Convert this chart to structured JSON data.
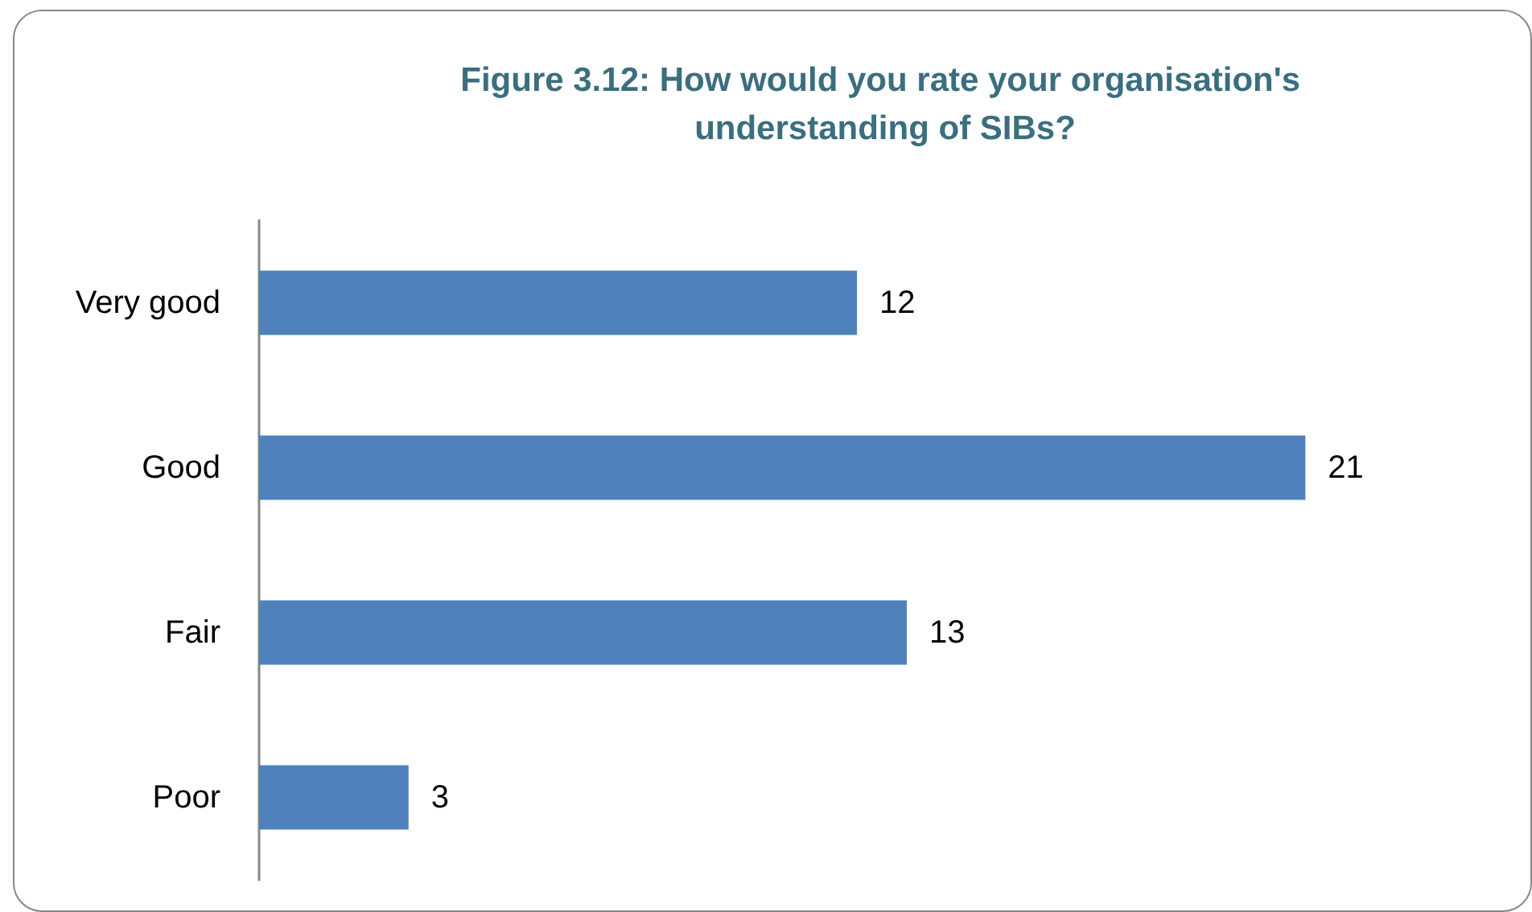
{
  "chart_data": {
    "type": "bar",
    "orientation": "horizontal",
    "title": "Figure 3.12: How would you rate your organisation's understanding of SIBs?",
    "categories": [
      "Very good",
      "Good",
      "Fair",
      "Poor"
    ],
    "values": [
      12,
      21,
      13,
      3
    ],
    "color": "#4f81bd",
    "data_labels": true
  }
}
